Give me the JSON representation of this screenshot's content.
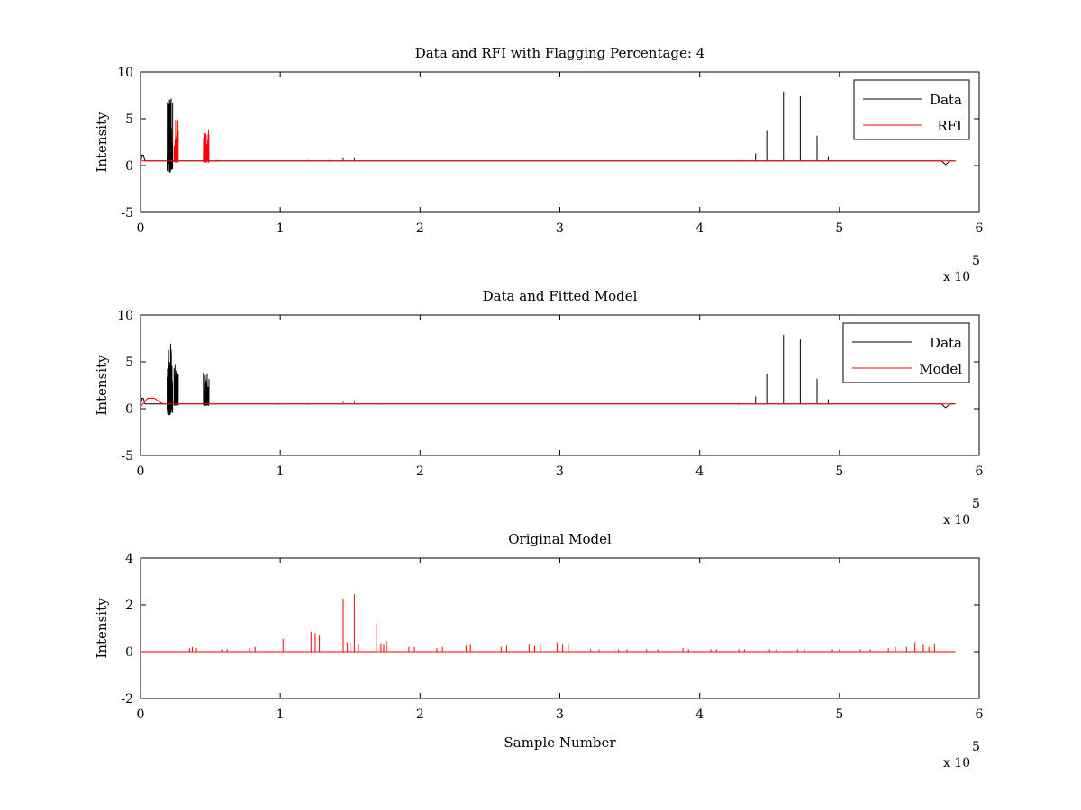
{
  "chart_data": [
    {
      "type": "line",
      "title": "Data and RFI with Flagging Percentage: 4",
      "xlabel": "",
      "ylabel": "Intensity",
      "xlim": [
        0,
        6
      ],
      "ylim": [
        -5,
        10
      ],
      "xticks": [
        0,
        1,
        2,
        3,
        4,
        5,
        6
      ],
      "yticks": [
        -5,
        0,
        5,
        10
      ],
      "x_multiplier_label": "x 10",
      "x_multiplier_exp": "5",
      "legend_position": "top-right",
      "baseline": 0.5,
      "series": [
        {
          "name": "Data",
          "color": "#000000",
          "noise_bursts": [
            {
              "x0": 0.19,
              "x1": 0.23,
              "lo": -0.8,
              "hi": 7.2
            }
          ],
          "bump": {
            "x": 0.02,
            "y": 1.1
          },
          "dip": {
            "x": 5.76,
            "y": 0.1
          },
          "spikes": [
            [
              4.4,
              1.3
            ],
            [
              4.48,
              3.7
            ],
            [
              4.6,
              7.9
            ],
            [
              4.72,
              7.4
            ],
            [
              4.84,
              3.2
            ],
            [
              4.92,
              1.0
            ],
            [
              0.45,
              0.7
            ],
            [
              0.55,
              0.6
            ],
            [
              1.45,
              0.8
            ],
            [
              1.53,
              0.8
            ],
            [
              1.2,
              0.6
            ],
            [
              1.35,
              0.6
            ],
            [
              3.8,
              0.55
            ],
            [
              4.28,
              0.6
            ]
          ]
        },
        {
          "name": "RFI",
          "color": "#ff0000",
          "noise_bursts": [
            {
              "x0": 0.24,
              "x1": 0.27,
              "lo": 0.3,
              "hi": 5.0
            },
            {
              "x0": 0.45,
              "x1": 0.49,
              "lo": 0.3,
              "hi": 3.9
            }
          ]
        }
      ]
    },
    {
      "type": "line",
      "title": "Data and Fitted Model",
      "xlabel": "",
      "ylabel": "Intensity",
      "xlim": [
        0,
        6
      ],
      "ylim": [
        -5,
        10
      ],
      "xticks": [
        0,
        1,
        2,
        3,
        4,
        5,
        6
      ],
      "yticks": [
        -5,
        0,
        5,
        10
      ],
      "x_multiplier_label": "x 10",
      "x_multiplier_exp": "5",
      "legend_position": "top-right",
      "baseline": 0.5,
      "series": [
        {
          "name": "Data",
          "color": "#000000",
          "noise_bursts": [
            {
              "x0": 0.19,
              "x1": 0.23,
              "lo": -0.8,
              "hi": 7.2
            },
            {
              "x0": 0.24,
              "x1": 0.27,
              "lo": 0.3,
              "hi": 5.0
            },
            {
              "x0": 0.45,
              "x1": 0.49,
              "lo": 0.3,
              "hi": 3.9
            }
          ],
          "bump": {
            "x": 0.02,
            "y": 1.1
          },
          "dip": {
            "x": 5.76,
            "y": 0.1
          },
          "spikes": [
            [
              4.4,
              1.3
            ],
            [
              4.48,
              3.7
            ],
            [
              4.6,
              7.9
            ],
            [
              4.72,
              7.4
            ],
            [
              4.84,
              3.2
            ],
            [
              4.92,
              1.0
            ],
            [
              3.8,
              0.55
            ],
            [
              4.28,
              0.6
            ]
          ]
        },
        {
          "name": "Model",
          "color": "#ff0000",
          "bump": {
            "x": 0.1,
            "y": 1.1
          },
          "spikes": [
            [
              1.45,
              0.8
            ],
            [
              1.53,
              0.8
            ],
            [
              1.0,
              0.6
            ],
            [
              1.2,
              0.6
            ],
            [
              1.7,
              0.6
            ],
            [
              2.0,
              0.55
            ],
            [
              2.4,
              0.55
            ],
            [
              5.8,
              0.6
            ]
          ]
        }
      ]
    },
    {
      "type": "line",
      "title": "Original Model",
      "xlabel": "Sample Number",
      "ylabel": "Intensity",
      "xlim": [
        0,
        6
      ],
      "ylim": [
        -2,
        4
      ],
      "xticks": [
        0,
        1,
        2,
        3,
        4,
        5,
        6
      ],
      "yticks": [
        -2,
        0,
        2,
        4
      ],
      "x_multiplier_label": "x 10",
      "x_multiplier_exp": "5",
      "baseline": 0.0,
      "x_end": 5.83,
      "series": [
        {
          "color": "#ff0000",
          "spikes": [
            [
              0.35,
              0.15
            ],
            [
              0.37,
              0.2
            ],
            [
              0.4,
              0.15
            ],
            [
              0.58,
              0.1
            ],
            [
              0.62,
              0.1
            ],
            [
              0.78,
              0.15
            ],
            [
              0.82,
              0.2
            ],
            [
              1.02,
              0.55
            ],
            [
              1.04,
              0.6
            ],
            [
              1.22,
              0.85
            ],
            [
              1.25,
              0.8
            ],
            [
              1.28,
              0.7
            ],
            [
              1.45,
              2.25
            ],
            [
              1.48,
              0.4
            ],
            [
              1.5,
              0.4
            ],
            [
              1.53,
              2.45
            ],
            [
              1.56,
              0.3
            ],
            [
              1.69,
              1.2
            ],
            [
              1.72,
              0.35
            ],
            [
              1.74,
              0.3
            ],
            [
              1.76,
              0.45
            ],
            [
              1.92,
              0.2
            ],
            [
              1.96,
              0.2
            ],
            [
              2.12,
              0.15
            ],
            [
              2.16,
              0.2
            ],
            [
              2.33,
              0.25
            ],
            [
              2.36,
              0.3
            ],
            [
              2.58,
              0.2
            ],
            [
              2.62,
              0.25
            ],
            [
              2.78,
              0.3
            ],
            [
              2.82,
              0.25
            ],
            [
              2.86,
              0.35
            ],
            [
              2.98,
              0.4
            ],
            [
              3.02,
              0.3
            ],
            [
              3.06,
              0.3
            ],
            [
              3.22,
              0.1
            ],
            [
              3.28,
              0.1
            ],
            [
              3.42,
              0.1
            ],
            [
              3.48,
              0.1
            ],
            [
              3.62,
              0.1
            ],
            [
              3.7,
              0.1
            ],
            [
              3.88,
              0.15
            ],
            [
              3.92,
              0.1
            ],
            [
              4.08,
              0.1
            ],
            [
              4.12,
              0.1
            ],
            [
              4.28,
              0.1
            ],
            [
              4.32,
              0.1
            ],
            [
              4.5,
              0.1
            ],
            [
              4.55,
              0.1
            ],
            [
              4.7,
              0.1
            ],
            [
              4.75,
              0.1
            ],
            [
              4.95,
              0.1
            ],
            [
              5.0,
              0.1
            ],
            [
              5.15,
              0.1
            ],
            [
              5.22,
              0.1
            ],
            [
              5.35,
              0.15
            ],
            [
              5.4,
              0.2
            ],
            [
              5.48,
              0.2
            ],
            [
              5.54,
              0.4
            ],
            [
              5.6,
              0.3
            ],
            [
              5.64,
              0.2
            ],
            [
              5.68,
              0.35
            ]
          ]
        }
      ]
    }
  ]
}
